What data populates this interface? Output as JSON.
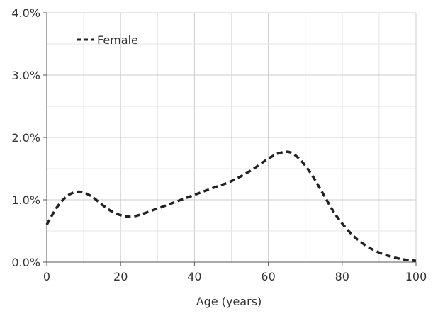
{
  "chart_data": {
    "type": "line",
    "title": "",
    "xlabel": "Age (years)",
    "ylabel": "",
    "xlim": [
      0,
      100
    ],
    "ylim": [
      0,
      4.0
    ],
    "x_ticks": [
      0,
      20,
      40,
      60,
      80,
      100
    ],
    "x_tick_labels": [
      "0",
      "20",
      "40",
      "60",
      "80",
      "100"
    ],
    "y_ticks": [
      0,
      1.0,
      2.0,
      3.0,
      4.0
    ],
    "y_tick_labels": [
      "0.0%",
      "1.0%",
      "2.0%",
      "3.0%",
      "4.0%"
    ],
    "grid": true,
    "legend_placement": "top-left",
    "series": [
      {
        "name": "Female",
        "style": "dashed",
        "color": "#222222",
        "x": [
          0,
          3,
          6,
          9,
          12,
          15,
          18,
          21,
          24,
          30,
          35,
          40,
          45,
          50,
          55,
          60,
          63,
          66,
          69,
          72,
          75,
          78,
          81,
          84,
          88,
          92,
          96,
          100
        ],
        "y": [
          0.6,
          0.9,
          1.08,
          1.13,
          1.06,
          0.92,
          0.8,
          0.74,
          0.74,
          0.86,
          0.97,
          1.08,
          1.19,
          1.3,
          1.46,
          1.66,
          1.75,
          1.76,
          1.62,
          1.38,
          1.08,
          0.78,
          0.55,
          0.37,
          0.21,
          0.11,
          0.05,
          0.02
        ]
      }
    ]
  }
}
